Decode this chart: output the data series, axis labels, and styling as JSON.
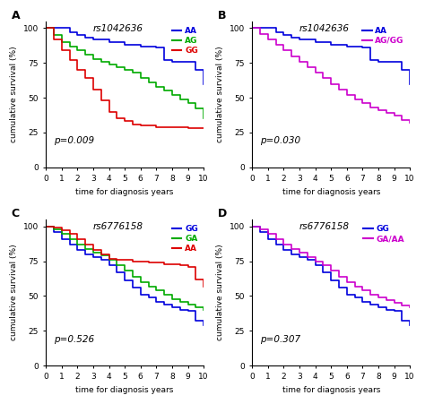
{
  "panels": [
    {
      "label": "A",
      "title": "rs1042636",
      "pvalue": "p=0.009",
      "series": [
        {
          "name": "AA",
          "color": "#0000dd",
          "times": [
            0,
            1,
            1.5,
            2,
            2.5,
            3,
            4,
            5,
            6,
            7,
            7.5,
            8,
            9,
            9.5,
            10
          ],
          "survival": [
            100,
            100,
            97,
            95,
            93,
            92,
            90,
            88,
            87,
            86,
            77,
            76,
            76,
            70,
            60
          ]
        },
        {
          "name": "AG",
          "color": "#00aa00",
          "times": [
            0,
            0.5,
            1,
            1.5,
            2,
            2.5,
            3,
            3.5,
            4,
            4.5,
            5,
            5.5,
            6,
            6.5,
            7,
            7.5,
            8,
            8.5,
            9,
            9.5,
            10
          ],
          "survival": [
            100,
            95,
            90,
            87,
            84,
            81,
            78,
            76,
            74,
            72,
            70,
            68,
            64,
            61,
            58,
            55,
            52,
            49,
            46,
            42,
            35
          ]
        },
        {
          "name": "GG",
          "color": "#dd0000",
          "times": [
            0,
            0.5,
            1,
            1.5,
            2,
            2.5,
            3,
            3.5,
            4,
            4.5,
            5,
            5.5,
            6,
            6.5,
            7,
            7.5,
            8,
            8.5,
            9,
            9.5,
            10
          ],
          "survival": [
            100,
            92,
            84,
            77,
            70,
            64,
            56,
            48,
            40,
            35,
            33,
            31,
            30,
            30,
            29,
            29,
            29,
            29,
            28,
            28,
            28
          ]
        }
      ]
    },
    {
      "label": "B",
      "title": "rs1042636",
      "pvalue": "p=0.030",
      "series": [
        {
          "name": "AA",
          "color": "#0000dd",
          "times": [
            0,
            1,
            1.5,
            2,
            2.5,
            3,
            4,
            5,
            6,
            7,
            7.5,
            8,
            9,
            9.5,
            10
          ],
          "survival": [
            100,
            100,
            97,
            95,
            93,
            92,
            90,
            88,
            87,
            86,
            77,
            76,
            76,
            70,
            60
          ]
        },
        {
          "name": "AG/GG",
          "color": "#cc00cc",
          "times": [
            0,
            0.5,
            1,
            1.5,
            2,
            2.5,
            3,
            3.5,
            4,
            4.5,
            5,
            5.5,
            6,
            6.5,
            7,
            7.5,
            8,
            8.5,
            9,
            9.5,
            10
          ],
          "survival": [
            100,
            96,
            92,
            88,
            84,
            80,
            76,
            72,
            68,
            64,
            60,
            56,
            52,
            49,
            46,
            43,
            41,
            39,
            37,
            34,
            32
          ]
        }
      ]
    },
    {
      "label": "C",
      "title": "rs6776158",
      "pvalue": "p=0.526",
      "series": [
        {
          "name": "GG",
          "color": "#0000dd",
          "times": [
            0,
            0.5,
            1,
            1.5,
            2,
            2.5,
            3,
            3.5,
            4,
            4.5,
            5,
            5.5,
            6,
            6.5,
            7,
            7.5,
            8,
            8.5,
            9,
            9.5,
            10
          ],
          "survival": [
            100,
            96,
            91,
            87,
            83,
            80,
            78,
            76,
            72,
            67,
            61,
            56,
            51,
            49,
            46,
            44,
            42,
            40,
            39,
            32,
            29
          ]
        },
        {
          "name": "GA",
          "color": "#00aa00",
          "times": [
            0,
            0.5,
            1,
            1.5,
            2,
            2.5,
            3,
            3.5,
            4,
            4.5,
            5,
            5.5,
            6,
            6.5,
            7,
            7.5,
            8,
            8.5,
            9,
            9.5,
            10
          ],
          "survival": [
            100,
            98,
            95,
            91,
            87,
            84,
            81,
            79,
            76,
            72,
            68,
            64,
            60,
            57,
            54,
            51,
            48,
            46,
            44,
            42,
            40
          ]
        },
        {
          "name": "AA",
          "color": "#dd0000",
          "times": [
            0,
            0.5,
            1,
            1.5,
            2,
            2.5,
            3,
            3.5,
            4,
            4.5,
            5,
            5.5,
            6,
            6.5,
            7,
            7.5,
            8,
            8.5,
            9,
            9.5,
            10
          ],
          "survival": [
            100,
            99,
            97,
            95,
            91,
            87,
            83,
            80,
            77,
            76,
            76,
            75,
            75,
            74,
            74,
            73,
            73,
            72,
            71,
            62,
            57
          ]
        }
      ]
    },
    {
      "label": "D",
      "title": "rs6776158",
      "pvalue": "p=0.307",
      "series": [
        {
          "name": "GG",
          "color": "#0000dd",
          "times": [
            0,
            0.5,
            1,
            1.5,
            2,
            2.5,
            3,
            3.5,
            4,
            4.5,
            5,
            5.5,
            6,
            6.5,
            7,
            7.5,
            8,
            8.5,
            9,
            9.5,
            10
          ],
          "survival": [
            100,
            96,
            91,
            87,
            83,
            80,
            78,
            76,
            72,
            67,
            61,
            56,
            51,
            49,
            46,
            44,
            42,
            40,
            39,
            32,
            29
          ]
        },
        {
          "name": "GA/AA",
          "color": "#cc00cc",
          "times": [
            0,
            0.5,
            1,
            1.5,
            2,
            2.5,
            3,
            3.5,
            4,
            4.5,
            5,
            5.5,
            6,
            6.5,
            7,
            7.5,
            8,
            8.5,
            9,
            9.5,
            10
          ],
          "survival": [
            100,
            98,
            95,
            91,
            87,
            84,
            81,
            78,
            75,
            72,
            68,
            64,
            60,
            57,
            54,
            51,
            49,
            47,
            45,
            43,
            42
          ]
        }
      ]
    }
  ],
  "xlabel": "time for diagnosis years",
  "ylabel": "cumulative survival (%)",
  "xlim": [
    0,
    10
  ],
  "ylim": [
    0,
    105
  ],
  "xticks": [
    0,
    1,
    2,
    3,
    4,
    5,
    6,
    7,
    8,
    9,
    10
  ],
  "yticks": [
    0,
    25,
    50,
    75,
    100
  ],
  "background_color": "#ffffff",
  "line_width": 1.2,
  "font_size": 6.5,
  "panel_label_fontsize": 9,
  "title_fontsize": 7.5,
  "pvalue_fontsize": 7.5,
  "legend_fontsize": 6.5
}
